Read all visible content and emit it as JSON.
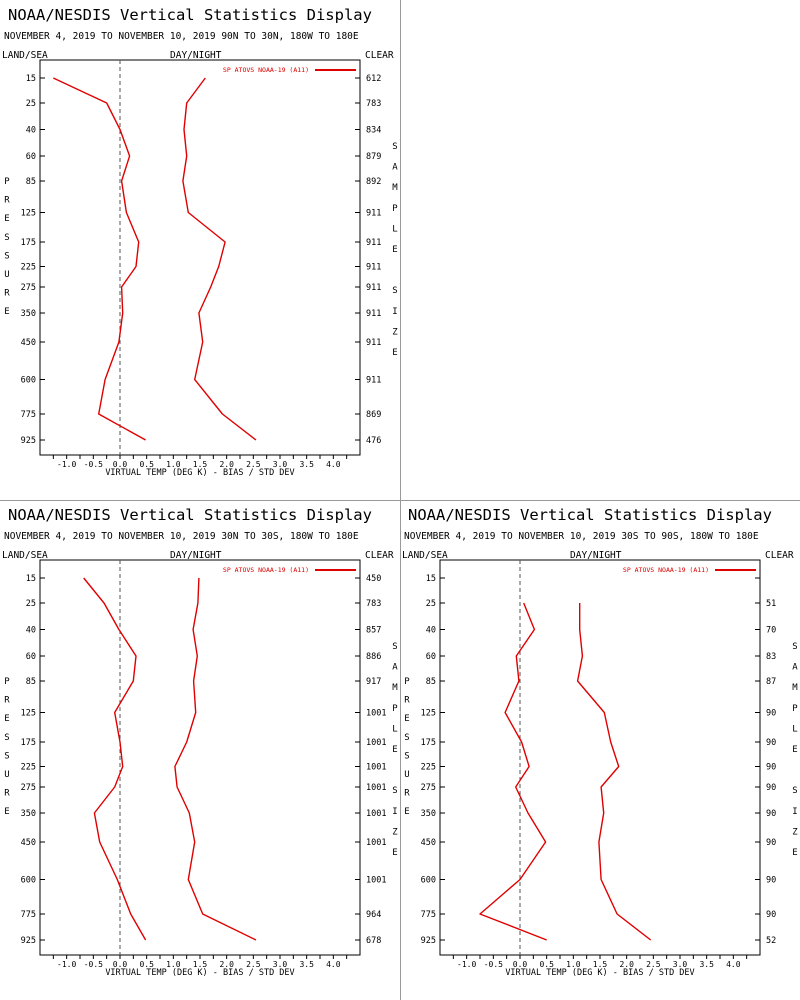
{
  "panels": [
    {
      "title": "NOAA/NESDIS Vertical Statistics Display",
      "subtitle": "NOVEMBER 4, 2019 TO NOVEMBER 10, 2019 90N TO 30N, 180W TO 180E",
      "header_left": "LAND/SEA",
      "header_center": "DAY/NIGHT",
      "header_right": "CLEAR",
      "left_axis_label": "PRESSURE",
      "right_axis_label": "SAMPLE SIZE",
      "sample_sizes": [
        "612",
        "783",
        "834",
        "879",
        "892",
        "911",
        "911",
        "911",
        "911",
        "911",
        "911",
        "911",
        "869",
        "476"
      ]
    },
    {
      "title": "NOAA/NESDIS Vertical Statistics Display",
      "subtitle": "NOVEMBER 4, 2019 TO NOVEMBER 10, 2019 30N TO 30S, 180W TO 180E",
      "header_left": "LAND/SEA",
      "header_center": "DAY/NIGHT",
      "header_right": "CLEAR",
      "left_axis_label": "PRESSURE",
      "right_axis_label": "SAMPLE SIZE",
      "sample_sizes": [
        "450",
        "783",
        "857",
        "886",
        "917",
        "1001",
        "1001",
        "1001",
        "1001",
        "1001",
        "1001",
        "1001",
        "964",
        "678"
      ]
    },
    {
      "title": "NOAA/NESDIS Vertical Statistics Display",
      "subtitle": "NOVEMBER 4, 2019 TO NOVEMBER 10, 2019 30S TO 90S, 180W TO 180E",
      "header_left": "LAND/SEA",
      "header_center": "DAY/NIGHT",
      "header_right": "CLEAR",
      "left_axis_label": "PRESSURE",
      "right_axis_label": "SAMPLE SIZE",
      "sample_sizes": [
        "",
        "51",
        "70",
        "83",
        "87",
        "90",
        "90",
        "90",
        "90",
        "90",
        "90",
        "90",
        "90",
        "52"
      ]
    }
  ],
  "chart_data": [
    {
      "type": "line",
      "title": "NOAA/NESDIS Vertical Statistics Display",
      "xlabel": "VIRTUAL TEMP (DEG K) - BIAS / STD DEV",
      "ylabel": "PRESSURE",
      "xlim": [
        -1.5,
        4.5
      ],
      "xticks": [
        "-1.0",
        "-0.5",
        "0.0",
        "0.5",
        "1.0",
        "1.5",
        "2.0",
        "2.5",
        "3.0",
        "3.5",
        "4.0"
      ],
      "y_levels": [
        "15",
        "25",
        "40",
        "60",
        "85",
        "125",
        "175",
        "225",
        "275",
        "350",
        "450",
        "600",
        "775",
        "925"
      ],
      "legend": "SP ATOVS NOAA-19 (A11)",
      "series": [
        {
          "name": "BIAS",
          "values": [
            -1.25,
            -0.25,
            0.0,
            0.18,
            0.03,
            0.12,
            0.35,
            0.3,
            0.03,
            0.05,
            -0.02,
            -0.28,
            -0.4,
            0.48
          ]
        },
        {
          "name": "STD DEV",
          "values": [
            1.6,
            1.25,
            1.2,
            1.25,
            1.18,
            1.28,
            1.97,
            1.85,
            1.7,
            1.48,
            1.55,
            1.4,
            1.92,
            2.55
          ]
        }
      ],
      "accent": "#e00000"
    },
    {
      "type": "line",
      "title": "NOAA/NESDIS Vertical Statistics Display",
      "xlabel": "VIRTUAL TEMP (DEG K) - BIAS / STD DEV",
      "ylabel": "PRESSURE",
      "xlim": [
        -1.5,
        4.5
      ],
      "xticks": [
        "-1.0",
        "-0.5",
        "0.0",
        "0.5",
        "1.0",
        "1.5",
        "2.0",
        "2.5",
        "3.0",
        "3.5",
        "4.0"
      ],
      "y_levels": [
        "15",
        "25",
        "40",
        "60",
        "85",
        "125",
        "175",
        "225",
        "275",
        "350",
        "450",
        "600",
        "775",
        "925"
      ],
      "legend": "SP ATOVS NOAA-19 (A11)",
      "series": [
        {
          "name": "BIAS",
          "values": [
            -0.68,
            -0.3,
            -0.02,
            0.3,
            0.25,
            -0.1,
            0.0,
            0.05,
            -0.1,
            -0.48,
            -0.38,
            -0.05,
            0.2,
            0.48
          ]
        },
        {
          "name": "STD DEV",
          "values": [
            1.48,
            1.46,
            1.37,
            1.45,
            1.38,
            1.42,
            1.25,
            1.03,
            1.07,
            1.3,
            1.4,
            1.28,
            1.55,
            2.55
          ]
        }
      ],
      "accent": "#e00000"
    },
    {
      "type": "line",
      "title": "NOAA/NESDIS Vertical Statistics Display",
      "xlabel": "VIRTUAL TEMP (DEG K) - BIAS / STD DEV",
      "ylabel": "PRESSURE",
      "xlim": [
        -1.5,
        4.5
      ],
      "xticks": [
        "-1.0",
        "-0.5",
        "0.0",
        "0.5",
        "1.0",
        "1.5",
        "2.0",
        "2.5",
        "3.0",
        "3.5",
        "4.0"
      ],
      "y_levels": [
        "15",
        "25",
        "40",
        "60",
        "85",
        "125",
        "175",
        "225",
        "275",
        "350",
        "450",
        "600",
        "775",
        "925"
      ],
      "legend": "SP ATOVS NOAA-19 (A11)",
      "series": [
        {
          "name": "BIAS",
          "values": [
            null,
            0.07,
            0.27,
            -0.07,
            -0.02,
            -0.28,
            0.03,
            0.17,
            -0.08,
            0.15,
            0.48,
            0.0,
            -0.75,
            0.5
          ]
        },
        {
          "name": "STD DEV",
          "values": [
            null,
            1.12,
            1.12,
            1.17,
            1.08,
            1.58,
            1.7,
            1.85,
            1.52,
            1.57,
            1.48,
            1.52,
            1.82,
            2.45
          ]
        }
      ],
      "accent": "#e00000"
    }
  ]
}
